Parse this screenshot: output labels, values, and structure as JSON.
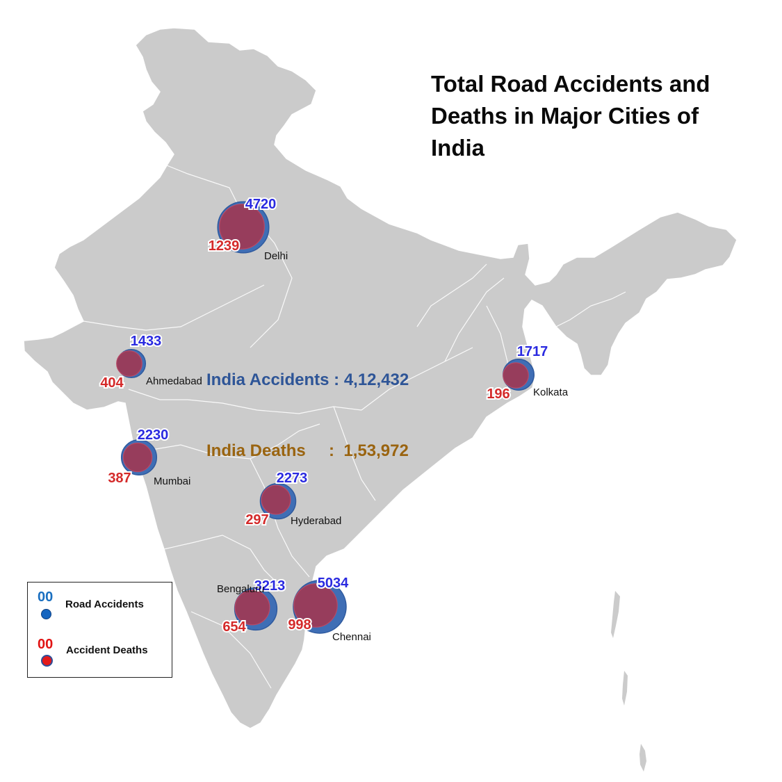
{
  "title_lines": [
    "Total Road Accidents and",
    "Deaths in Major Cities of",
    "India"
  ],
  "totals": {
    "accidents": "India Accidents : 4,12,432",
    "deaths": "India Deaths     :  1,53,972"
  },
  "legend": {
    "accidents_number": "00",
    "accidents_label": "Road Accidents",
    "deaths_number": "00",
    "deaths_label": "Accident Deaths"
  },
  "colors": {
    "map_fill": "#cbcbcb",
    "map_border": "#ffffff",
    "accident_circle": "#3f6eb5",
    "death_circle": "#9c3a57",
    "accident_label": "#2a2ae0",
    "death_label": "#d42a2a"
  },
  "cities": [
    {
      "name": "Delhi",
      "accidents": 4720,
      "deaths": 1239
    },
    {
      "name": "Ahmedabad",
      "accidents": 1433,
      "deaths": 404
    },
    {
      "name": "Kolkata",
      "accidents": 1717,
      "deaths": 196
    },
    {
      "name": "Mumbai",
      "accidents": 2230,
      "deaths": 387
    },
    {
      "name": "Hyderabad",
      "accidents": 2273,
      "deaths": 297
    },
    {
      "name": "Bengaluru",
      "accidents": 3213,
      "deaths": 654
    },
    {
      "name": "Chennai",
      "accidents": 5034,
      "deaths": 998
    }
  ]
}
